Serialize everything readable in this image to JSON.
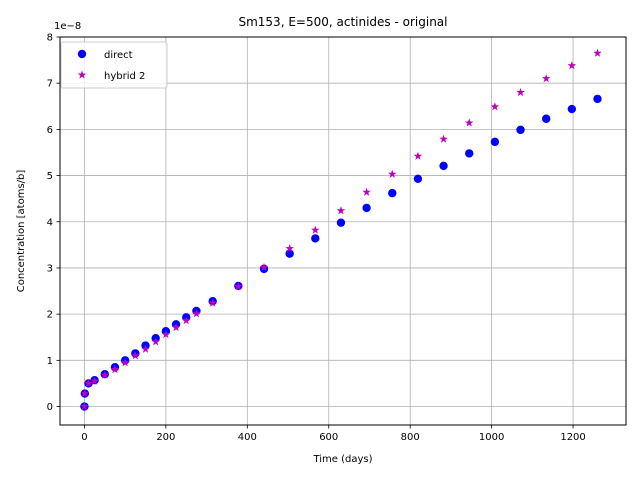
{
  "chart_data": {
    "type": "scatter",
    "title": "Sm153, E=500, actinides - original",
    "xlabel": "Time (days)",
    "ylabel": "Concentration [atoms/b]",
    "y_offset_text": "1e−8",
    "y_multiplier": 1e-08,
    "xlim": [
      -60,
      1330
    ],
    "ylim": [
      -0.4,
      8.0
    ],
    "x_ticks": [
      0,
      200,
      400,
      600,
      800,
      1000,
      1200
    ],
    "x_tick_labels": [
      "0",
      "200",
      "400",
      "600",
      "800",
      "1000",
      "1200"
    ],
    "y_ticks": [
      0,
      1,
      2,
      3,
      4,
      5,
      6,
      7,
      8
    ],
    "y_tick_labels": [
      "0",
      "1",
      "2",
      "3",
      "4",
      "5",
      "6",
      "7",
      "8"
    ],
    "grid": true,
    "legend_position": "upper-left",
    "series": [
      {
        "name": "direct",
        "marker": "circle",
        "color": "#0000ff",
        "x": [
          0,
          1,
          10,
          25,
          50,
          75,
          100,
          125,
          150,
          175,
          200,
          225,
          250,
          275,
          315,
          378,
          441,
          504,
          567,
          630,
          693,
          756,
          819,
          882,
          945,
          1008,
          1071,
          1134,
          1197,
          1260
        ],
        "y": [
          0.0,
          0.28,
          0.5,
          0.57,
          0.7,
          0.85,
          1.0,
          1.15,
          1.32,
          1.48,
          1.63,
          1.78,
          1.93,
          2.07,
          2.28,
          2.61,
          2.98,
          3.31,
          3.64,
          3.98,
          4.3,
          4.62,
          4.93,
          5.21,
          5.48,
          5.73,
          5.99,
          6.23,
          6.44,
          6.66
        ]
      },
      {
        "name": "hybrid 2",
        "marker": "star",
        "color": "#bf00bf",
        "x": [
          0,
          1,
          10,
          25,
          50,
          75,
          100,
          125,
          150,
          175,
          200,
          225,
          250,
          275,
          315,
          378,
          441,
          504,
          567,
          630,
          693,
          756,
          819,
          882,
          945,
          1008,
          1071,
          1134,
          1197,
          1260
        ],
        "y": [
          0.0,
          0.28,
          0.5,
          0.55,
          0.68,
          0.8,
          0.95,
          1.1,
          1.24,
          1.4,
          1.56,
          1.71,
          1.86,
          2.01,
          2.24,
          2.6,
          3.01,
          3.42,
          3.82,
          4.24,
          4.64,
          5.03,
          5.42,
          5.79,
          6.14,
          6.49,
          6.8,
          7.1,
          7.38,
          7.65
        ]
      }
    ]
  }
}
